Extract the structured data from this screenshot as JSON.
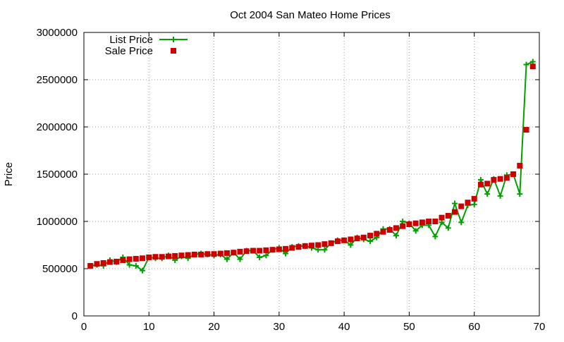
{
  "chart_data": {
    "type": "line",
    "title": "Oct 2004 San Mateo Home Prices",
    "xlabel": "",
    "ylabel": "Price",
    "xlim": [
      0,
      70
    ],
    "ylim": [
      0,
      3000000
    ],
    "x_ticks": [
      0,
      10,
      20,
      30,
      40,
      50,
      60,
      70
    ],
    "y_ticks": [
      0,
      500000,
      1000000,
      1500000,
      2000000,
      2500000,
      3000000
    ],
    "grid": true,
    "legend_position": "top-left",
    "series": [
      {
        "name": "List Price",
        "style": "line+plus",
        "color": "#00a000",
        "x": [
          1,
          2,
          3,
          4,
          5,
          6,
          7,
          8,
          9,
          10,
          11,
          12,
          13,
          14,
          15,
          16,
          17,
          18,
          19,
          20,
          21,
          22,
          23,
          24,
          25,
          26,
          27,
          28,
          29,
          30,
          31,
          32,
          33,
          34,
          35,
          36,
          37,
          38,
          39,
          40,
          41,
          42,
          43,
          44,
          45,
          46,
          47,
          48,
          49,
          50,
          51,
          52,
          53,
          54,
          55,
          56,
          57,
          58,
          59,
          60,
          61,
          62,
          63,
          64,
          65,
          66,
          67,
          68,
          69
        ],
        "y": [
          530000,
          540000,
          530000,
          590000,
          570000,
          620000,
          540000,
          530000,
          480000,
          620000,
          610000,
          610000,
          640000,
          590000,
          630000,
          610000,
          650000,
          660000,
          650000,
          640000,
          650000,
          600000,
          670000,
          600000,
          690000,
          690000,
          620000,
          640000,
          700000,
          720000,
          660000,
          730000,
          740000,
          740000,
          720000,
          700000,
          700000,
          770000,
          800000,
          800000,
          750000,
          830000,
          810000,
          790000,
          830000,
          920000,
          920000,
          850000,
          1000000,
          980000,
          900000,
          960000,
          960000,
          840000,
          990000,
          930000,
          1190000,
          990000,
          1170000,
          1180000,
          1440000,
          1290000,
          1450000,
          1270000,
          1490000,
          1500000,
          1290000,
          2660000,
          2690000
        ]
      },
      {
        "name": "Sale Price",
        "style": "square",
        "color": "#cc0000",
        "x": [
          1,
          2,
          3,
          4,
          5,
          6,
          7,
          8,
          9,
          10,
          11,
          12,
          13,
          14,
          15,
          16,
          17,
          18,
          19,
          20,
          21,
          22,
          23,
          24,
          25,
          26,
          27,
          28,
          29,
          30,
          31,
          32,
          33,
          34,
          35,
          36,
          37,
          38,
          39,
          40,
          41,
          42,
          43,
          44,
          45,
          46,
          47,
          48,
          49,
          50,
          51,
          52,
          53,
          54,
          55,
          56,
          57,
          58,
          59,
          60,
          61,
          62,
          63,
          64,
          65,
          66,
          67,
          68,
          69
        ],
        "y": [
          530000,
          550000,
          560000,
          570000,
          575000,
          590000,
          600000,
          605000,
          610000,
          620000,
          625000,
          625000,
          630000,
          635000,
          640000,
          645000,
          650000,
          650000,
          655000,
          655000,
          660000,
          665000,
          670000,
          680000,
          685000,
          690000,
          690000,
          695000,
          700000,
          705000,
          710000,
          720000,
          730000,
          740000,
          745000,
          750000,
          760000,
          770000,
          790000,
          800000,
          810000,
          820000,
          830000,
          850000,
          870000,
          890000,
          910000,
          930000,
          950000,
          970000,
          980000,
          990000,
          1000000,
          1000000,
          1040000,
          1060000,
          1100000,
          1160000,
          1200000,
          1240000,
          1390000,
          1400000,
          1440000,
          1450000,
          1460000,
          1500000,
          1590000,
          1970000,
          2640000
        ]
      }
    ]
  }
}
